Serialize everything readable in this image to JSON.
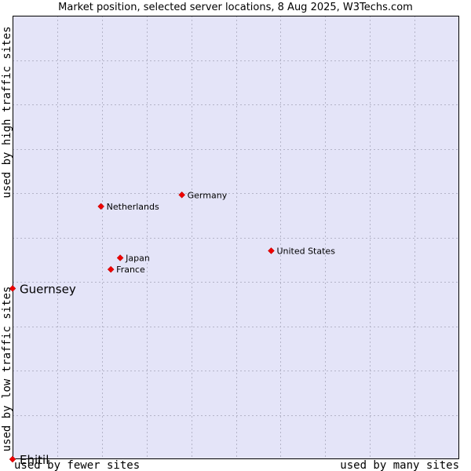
{
  "chart_data": {
    "type": "scatter",
    "title": "Market position, selected server locations, 8 Aug 2025, W3Techs.com",
    "xlabel_left": "used by fewer sites",
    "xlabel_right": "used by many sites",
    "ylabel_top": "used by high traffic sites",
    "ylabel_bottom": "used by low traffic sites",
    "xlim": [
      0,
      100
    ],
    "ylim": [
      0,
      100
    ],
    "grid": true,
    "colors": {
      "plot_bg": "#e4e4f8",
      "grid": "#b4b4c8",
      "point": "#ee0000"
    },
    "points": [
      {
        "label": "Germany",
        "x": 37.9,
        "y": 59.6,
        "emphasis": false
      },
      {
        "label": "Netherlands",
        "x": 19.8,
        "y": 57.0,
        "emphasis": false
      },
      {
        "label": "United States",
        "x": 57.9,
        "y": 47.0,
        "emphasis": false
      },
      {
        "label": "Japan",
        "x": 24.1,
        "y": 45.4,
        "emphasis": false
      },
      {
        "label": "France",
        "x": 22.0,
        "y": 42.8,
        "emphasis": false
      },
      {
        "label": "Guernsey",
        "x": 0.0,
        "y": 38.5,
        "emphasis": true
      },
      {
        "label": "Ehitil",
        "x": 0.0,
        "y": 0.0,
        "emphasis": true
      }
    ]
  }
}
